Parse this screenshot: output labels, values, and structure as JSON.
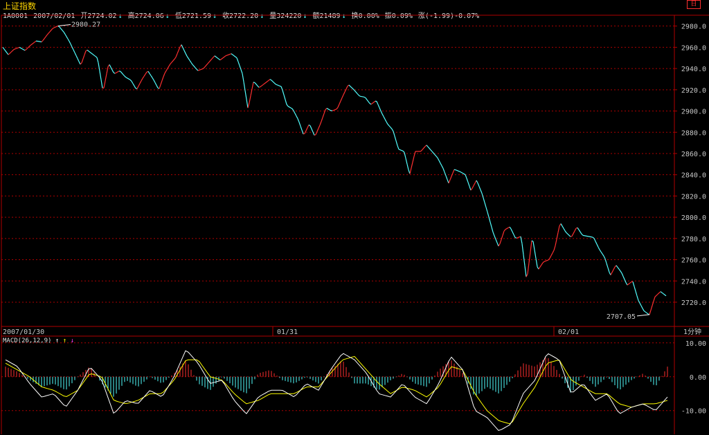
{
  "header": {
    "index_name": "上证指数",
    "code": "1A0001",
    "date": "2007/02/01",
    "open": "开2724.02",
    "high": "高2724.06",
    "low": "低2721.59",
    "close": "收2722.20",
    "volume": "量324220",
    "amount": "额21489",
    "turnover": "换0.00%",
    "amplitude": "振0.09%",
    "change": "涨(-1.99)-0.07%",
    "arrow": "↓",
    "restore_icon": "日"
  },
  "colors": {
    "up": "#ff3030",
    "down": "#52ffff",
    "grid": "#b00000",
    "macd_line": "#ffffff",
    "signal_line": "#ffff00"
  },
  "chart_data": [
    {
      "type": "line",
      "subtype": "intraday-minute-price",
      "x_labels": [
        "2007/01/30",
        "01/31",
        "02/01"
      ],
      "period_label": "1分钟",
      "y_ticks": [
        "2980.0",
        "2960.0",
        "2940.0",
        "2920.0",
        "2900.0",
        "2880.0",
        "2860.0",
        "2840.0",
        "2820.0",
        "2800.0",
        "2780.0",
        "2760.0",
        "2740.0",
        "2720.0"
      ],
      "ylim": [
        2705,
        2985
      ],
      "annotations": {
        "max": "2980.27",
        "min": "2707.05"
      },
      "price_keypoints": [
        2960,
        2953,
        2958,
        2960,
        2957,
        2962,
        2966,
        2965,
        2972,
        2978,
        2980.27,
        2974,
        2965,
        2954,
        2943,
        2958,
        2954,
        2950,
        2918,
        2945,
        2935,
        2938,
        2932,
        2929,
        2920,
        2930,
        2938,
        2930,
        2920,
        2935,
        2944,
        2950,
        2963,
        2952,
        2944,
        2938,
        2940,
        2946,
        2952,
        2948,
        2952,
        2954,
        2950,
        2935,
        2902,
        2928,
        2922,
        2926,
        2930,
        2925,
        2923,
        2905,
        2902,
        2892,
        2877,
        2888,
        2876,
        2888,
        2903,
        2900,
        2902,
        2914,
        2925,
        2920,
        2914,
        2913,
        2906,
        2910,
        2898,
        2888,
        2882,
        2864,
        2862,
        2840,
        2862,
        2862,
        2868,
        2862,
        2856,
        2846,
        2832,
        2845,
        2843,
        2840,
        2825,
        2835,
        2822,
        2804,
        2785,
        2772,
        2788,
        2791,
        2780,
        2782,
        2740,
        2782,
        2750,
        2758,
        2760,
        2770,
        2795,
        2786,
        2781,
        2791,
        2783,
        2782,
        2781,
        2770,
        2762,
        2745,
        2755,
        2748,
        2736,
        2740,
        2722,
        2712,
        2708,
        2725,
        2730,
        2726
      ]
    },
    {
      "type": "line",
      "subtype": "macd",
      "title": "MACD(26,12,9)",
      "y_ticks": [
        "10.00",
        "0.00",
        "-10.00"
      ],
      "ylim": [
        -17,
        12
      ],
      "macd_keypoints": [
        5,
        3,
        -2,
        -6,
        -5,
        -9,
        -4,
        3,
        -1,
        -11,
        -7,
        -8,
        -4,
        -6,
        0,
        8,
        4,
        -2,
        -1,
        -7,
        -11,
        -6,
        -4,
        -4,
        -6,
        -2,
        -4,
        2,
        7,
        5,
        1,
        -5,
        -6,
        -2,
        -6,
        -8,
        -2,
        6,
        2,
        -10,
        -12,
        -16,
        -14,
        -5,
        -1,
        7,
        5,
        -5,
        -2,
        -7,
        -5,
        -11,
        -9,
        -8,
        -10,
        -6
      ],
      "signal_keypoints": [
        4,
        2,
        0,
        -3,
        -4,
        -6,
        -4,
        1,
        0,
        -7,
        -8,
        -7,
        -5,
        -5,
        -1,
        5,
        5,
        0,
        -1,
        -5,
        -8,
        -7,
        -5,
        -5,
        -5,
        -3,
        -3,
        1,
        5,
        6,
        2,
        -2,
        -5,
        -3,
        -4,
        -6,
        -3,
        3,
        2,
        -5,
        -10,
        -13,
        -14,
        -8,
        -3,
        4,
        5,
        -1,
        -3,
        -5,
        -5,
        -8,
        -9,
        -8,
        -8,
        -7
      ],
      "histogram_keypoints": [
        3,
        1.5,
        -1,
        -3,
        -2,
        -4,
        0,
        3,
        -2,
        -6,
        -1,
        -3,
        0,
        -2,
        1,
        5,
        -2,
        -4,
        0,
        -3,
        -5,
        1,
        2,
        -1,
        -2,
        0,
        -2,
        2,
        5,
        -2,
        -2,
        -4,
        -1,
        1,
        -2,
        -3,
        2,
        5,
        1,
        -6,
        -3,
        -5,
        -1,
        4,
        3,
        6,
        1,
        -5,
        1,
        -3,
        0,
        -4,
        -1,
        1,
        -3,
        3
      ]
    }
  ]
}
